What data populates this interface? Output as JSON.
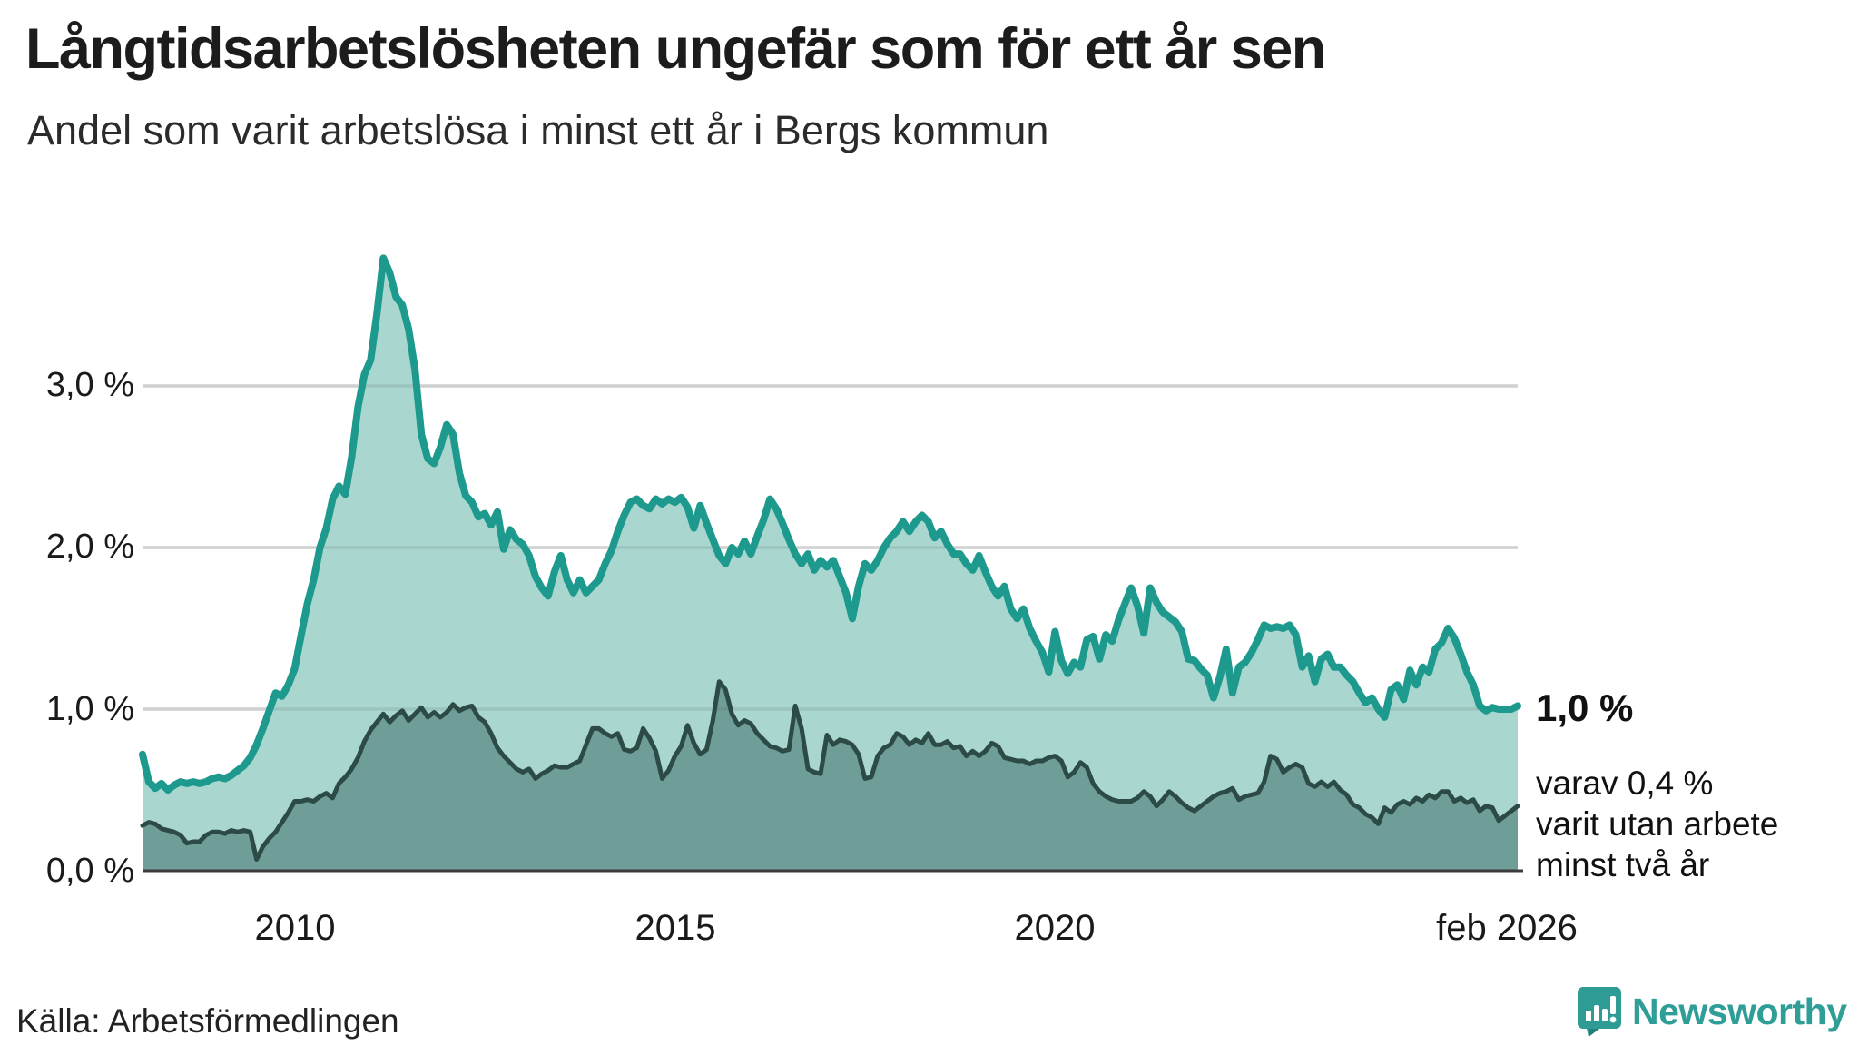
{
  "header": {
    "title": "Långtidsarbetslösheten ungefär som för ett år sen",
    "subtitle": "Andel som varit arbetslösa i minst ett år i Bergs kommun"
  },
  "chart_data": {
    "type": "area",
    "title": "Långtidsarbetslösheten ungefär som för ett år sen",
    "subtitle": "Andel som varit arbetslösa i minst ett år i Bergs kommun",
    "x_range": {
      "start": "2008-01",
      "end": "2026-02",
      "points_per_year": 12
    },
    "x_axis": {
      "tick_labels": [
        "2010",
        "2015",
        "2020",
        "feb 2026"
      ],
      "tick_years": [
        2010,
        2015,
        2020,
        2026.08
      ]
    },
    "y_axis": {
      "tick_labels": [
        "0,0 %",
        "1,0 %",
        "2,0 %",
        "3,0 %"
      ],
      "tick_values": [
        0,
        1,
        2,
        3
      ],
      "range": [
        0,
        3.9
      ],
      "grid": true
    },
    "legend_position": "end-labels-right",
    "colors": {
      "series1_line": "#1d9a8d",
      "series1_fill": "#a9d7d0",
      "series2_line": "#2d4b46",
      "series2_fill": "#6f9e98",
      "gridline": "#e3e5e8",
      "axis": "#3b3b3b",
      "accent": "#2f9e97"
    },
    "end_labels": {
      "primary": "1,0 %",
      "secondary_lines": [
        "varav 0,4 %",
        "varit utan arbete",
        "minst två år"
      ]
    },
    "series": [
      {
        "name": "Andel som varit arbetslösa i minst ett år",
        "end_value_pct": 1.0,
        "values": [
          0.72,
          0.55,
          0.51,
          0.54,
          0.5,
          0.53,
          0.55,
          0.54,
          0.55,
          0.54,
          0.55,
          0.57,
          0.58,
          0.57,
          0.59,
          0.62,
          0.65,
          0.7,
          0.78,
          0.88,
          0.99,
          1.1,
          1.08,
          1.15,
          1.25,
          1.45,
          1.65,
          1.8,
          2.0,
          2.12,
          2.3,
          2.38,
          2.33,
          2.56,
          2.87,
          3.07,
          3.16,
          3.45,
          3.79,
          3.7,
          3.55,
          3.5,
          3.35,
          3.1,
          2.7,
          2.55,
          2.52,
          2.62,
          2.76,
          2.7,
          2.46,
          2.32,
          2.28,
          2.19,
          2.21,
          2.14,
          2.22,
          1.99,
          2.11,
          2.05,
          2.02,
          1.95,
          1.82,
          1.75,
          1.7,
          1.85,
          1.95,
          1.8,
          1.72,
          1.8,
          1.72,
          1.76,
          1.8,
          1.9,
          1.98,
          2.1,
          2.2,
          2.28,
          2.3,
          2.26,
          2.24,
          2.3,
          2.27,
          2.3,
          2.28,
          2.31,
          2.25,
          2.12,
          2.26,
          2.15,
          2.05,
          1.95,
          1.9,
          2.0,
          1.96,
          2.04,
          1.96,
          2.07,
          2.17,
          2.3,
          2.24,
          2.15,
          2.05,
          1.96,
          1.9,
          1.96,
          1.86,
          1.92,
          1.88,
          1.92,
          1.82,
          1.72,
          1.56,
          1.76,
          1.9,
          1.86,
          1.92,
          2.0,
          2.06,
          2.1,
          2.16,
          2.1,
          2.16,
          2.2,
          2.16,
          2.06,
          2.1,
          2.02,
          1.96,
          1.96,
          1.9,
          1.86,
          1.95,
          1.85,
          1.76,
          1.7,
          1.76,
          1.62,
          1.56,
          1.62,
          1.5,
          1.42,
          1.35,
          1.23,
          1.48,
          1.3,
          1.22,
          1.29,
          1.26,
          1.43,
          1.45,
          1.31,
          1.46,
          1.42,
          1.55,
          1.65,
          1.75,
          1.64,
          1.47,
          1.75,
          1.66,
          1.6,
          1.57,
          1.54,
          1.48,
          1.31,
          1.3,
          1.25,
          1.21,
          1.07,
          1.2,
          1.37,
          1.1,
          1.26,
          1.29,
          1.35,
          1.43,
          1.52,
          1.5,
          1.51,
          1.5,
          1.52,
          1.46,
          1.26,
          1.33,
          1.17,
          1.31,
          1.34,
          1.26,
          1.26,
          1.21,
          1.17,
          1.1,
          1.04,
          1.07,
          1.0,
          0.95,
          1.12,
          1.15,
          1.06,
          1.24,
          1.15,
          1.26,
          1.23,
          1.37,
          1.41,
          1.5,
          1.44,
          1.34,
          1.23,
          1.15,
          1.02,
          0.99,
          1.01,
          1.0,
          1.0,
          1.0,
          1.02
        ]
      },
      {
        "name": "varav utan arbete minst två år",
        "end_value_pct": 0.4,
        "values": [
          0.28,
          0.3,
          0.29,
          0.26,
          0.25,
          0.24,
          0.22,
          0.17,
          0.18,
          0.18,
          0.22,
          0.24,
          0.24,
          0.23,
          0.25,
          0.24,
          0.25,
          0.24,
          0.07,
          0.15,
          0.2,
          0.24,
          0.3,
          0.36,
          0.43,
          0.43,
          0.44,
          0.43,
          0.46,
          0.48,
          0.45,
          0.54,
          0.58,
          0.63,
          0.7,
          0.8,
          0.87,
          0.92,
          0.97,
          0.92,
          0.96,
          0.99,
          0.93,
          0.97,
          1.01,
          0.95,
          0.98,
          0.95,
          0.98,
          1.03,
          0.99,
          1.01,
          1.02,
          0.95,
          0.92,
          0.85,
          0.76,
          0.71,
          0.67,
          0.63,
          0.61,
          0.63,
          0.57,
          0.6,
          0.62,
          0.65,
          0.64,
          0.64,
          0.66,
          0.68,
          0.78,
          0.88,
          0.88,
          0.85,
          0.83,
          0.85,
          0.75,
          0.74,
          0.76,
          0.88,
          0.82,
          0.74,
          0.57,
          0.62,
          0.71,
          0.77,
          0.9,
          0.79,
          0.72,
          0.75,
          0.93,
          1.17,
          1.12,
          0.97,
          0.9,
          0.93,
          0.91,
          0.85,
          0.81,
          0.77,
          0.76,
          0.74,
          0.75,
          1.02,
          0.88,
          0.63,
          0.61,
          0.6,
          0.84,
          0.78,
          0.81,
          0.8,
          0.78,
          0.72,
          0.57,
          0.58,
          0.71,
          0.76,
          0.78,
          0.85,
          0.83,
          0.78,
          0.81,
          0.79,
          0.85,
          0.78,
          0.78,
          0.8,
          0.76,
          0.77,
          0.71,
          0.74,
          0.71,
          0.74,
          0.79,
          0.77,
          0.7,
          0.69,
          0.68,
          0.68,
          0.66,
          0.68,
          0.68,
          0.7,
          0.71,
          0.68,
          0.58,
          0.61,
          0.67,
          0.64,
          0.54,
          0.49,
          0.46,
          0.44,
          0.43,
          0.43,
          0.43,
          0.45,
          0.49,
          0.46,
          0.4,
          0.44,
          0.49,
          0.46,
          0.42,
          0.39,
          0.37,
          0.4,
          0.43,
          0.46,
          0.48,
          0.49,
          0.51,
          0.44,
          0.46,
          0.47,
          0.48,
          0.55,
          0.71,
          0.69,
          0.61,
          0.64,
          0.66,
          0.64,
          0.54,
          0.52,
          0.55,
          0.52,
          0.55,
          0.5,
          0.47,
          0.41,
          0.39,
          0.35,
          0.33,
          0.29,
          0.39,
          0.36,
          0.41,
          0.43,
          0.41,
          0.45,
          0.43,
          0.47,
          0.45,
          0.49,
          0.49,
          0.43,
          0.45,
          0.42,
          0.44,
          0.37,
          0.4,
          0.39,
          0.31,
          0.34,
          0.37,
          0.4
        ]
      }
    ]
  },
  "footer": {
    "source": "Källa: Arbetsförmedlingen",
    "brand": "Newsworthy"
  }
}
